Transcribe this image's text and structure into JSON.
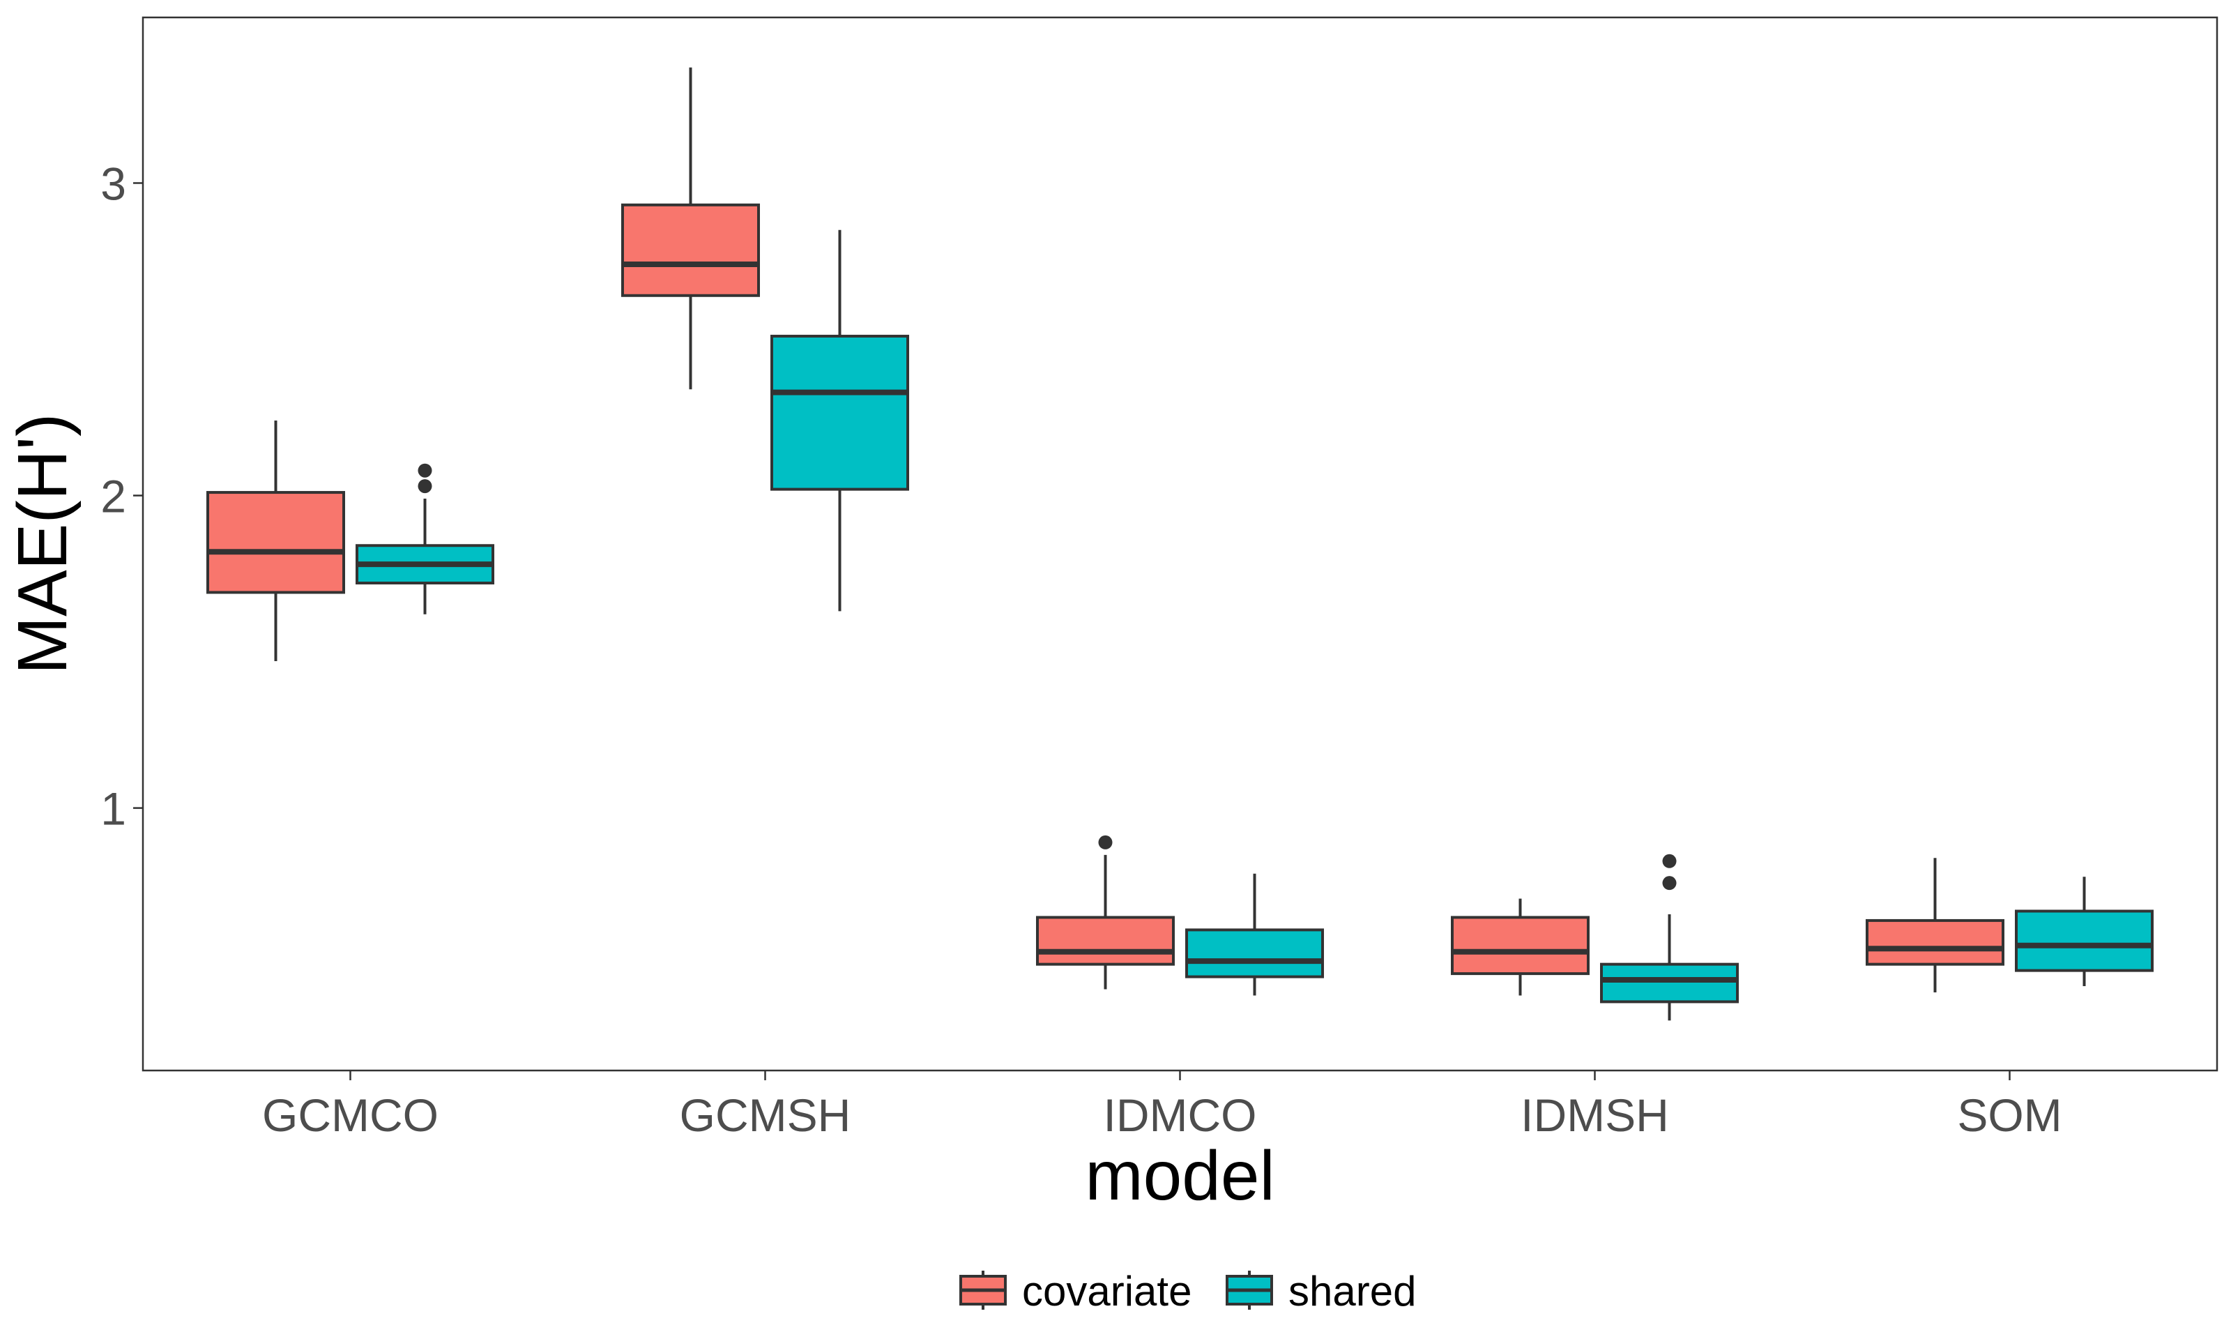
{
  "chart_data": {
    "type": "boxplot",
    "title": "",
    "xlabel": "model",
    "ylabel": "MAE(H')",
    "ylim": [
      0.16,
      3.53
    ],
    "y_ticks": [
      1,
      2,
      3
    ],
    "grid": false,
    "legend_position": "bottom",
    "categories": [
      "GCMCO",
      "GCMSH",
      "IDMCO",
      "IDMSH",
      "SOM"
    ],
    "series": [
      {
        "name": "covariate",
        "color": "#F8766D",
        "boxes": [
          {
            "whisker_low": 1.47,
            "q1": 1.69,
            "median": 1.82,
            "q3": 2.01,
            "whisker_high": 2.24,
            "outliers": []
          },
          {
            "whisker_low": 2.34,
            "q1": 2.64,
            "median": 2.74,
            "q3": 2.93,
            "whisker_high": 3.37,
            "outliers": []
          },
          {
            "whisker_low": 0.42,
            "q1": 0.5,
            "median": 0.54,
            "q3": 0.65,
            "whisker_high": 0.85,
            "outliers": [
              0.89
            ]
          },
          {
            "whisker_low": 0.4,
            "q1": 0.47,
            "median": 0.54,
            "q3": 0.65,
            "whisker_high": 0.71,
            "outliers": []
          },
          {
            "whisker_low": 0.41,
            "q1": 0.5,
            "median": 0.55,
            "q3": 0.64,
            "whisker_high": 0.84,
            "outliers": []
          }
        ]
      },
      {
        "name": "shared",
        "color": "#00BFC4",
        "boxes": [
          {
            "whisker_low": 1.62,
            "q1": 1.72,
            "median": 1.78,
            "q3": 1.84,
            "whisker_high": 1.99,
            "outliers": [
              2.03,
              2.08
            ]
          },
          {
            "whisker_low": 1.63,
            "q1": 2.02,
            "median": 2.33,
            "q3": 2.51,
            "whisker_high": 2.85,
            "outliers": []
          },
          {
            "whisker_low": 0.4,
            "q1": 0.46,
            "median": 0.51,
            "q3": 0.61,
            "whisker_high": 0.79,
            "outliers": []
          },
          {
            "whisker_low": 0.32,
            "q1": 0.38,
            "median": 0.45,
            "q3": 0.5,
            "whisker_high": 0.66,
            "outliers": [
              0.76,
              0.83
            ]
          },
          {
            "whisker_low": 0.43,
            "q1": 0.48,
            "median": 0.56,
            "q3": 0.67,
            "whisker_high": 0.78,
            "outliers": []
          }
        ]
      }
    ]
  }
}
